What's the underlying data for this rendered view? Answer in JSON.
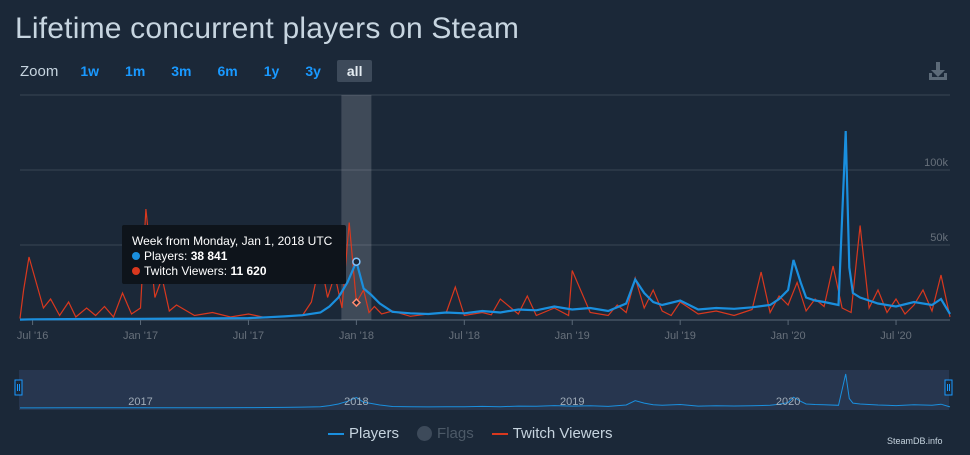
{
  "title": "Lifetime concurrent players on Steam",
  "zoom": {
    "label": "Zoom",
    "options": [
      "1w",
      "1m",
      "3m",
      "6m",
      "1y",
      "3y",
      "all"
    ],
    "active": "all"
  },
  "credit": "SteamDB.info",
  "icons": {
    "download": "download-icon"
  },
  "colors": {
    "players": "#1a8fde",
    "twitch": "#d9381e",
    "background": "#1b2838",
    "grid": "#3a4654",
    "navigator": "#2a3a55"
  },
  "tooltip": {
    "header": "Week from Monday, Jan 1, 2018 UTC",
    "players_label": "Players:",
    "players_value": "38 841",
    "twitch_label": "Twitch Viewers:",
    "twitch_value": "11 620"
  },
  "legend": {
    "players": "Players",
    "flags": "Flags",
    "twitch": "Twitch Viewers"
  },
  "chart_data": {
    "type": "line",
    "title": "Lifetime concurrent players on Steam",
    "x_unit": "months since Jan 2016",
    "xlim": [
      5.3,
      57.0
    ],
    "ylim": [
      0,
      150000
    ],
    "y_ticks": [
      50000,
      100000
    ],
    "y_tick_labels": [
      "50k",
      "100k"
    ],
    "x_ticks": [
      6,
      12,
      18,
      24,
      30,
      36,
      42,
      48,
      54
    ],
    "x_tick_labels": [
      "Jul '16",
      "Jan '17",
      "Jul '17",
      "Jan '18",
      "Jul '18",
      "Jan '19",
      "Jul '19",
      "Jan '20",
      "Jul '20"
    ],
    "navigator_labels": [
      "2017",
      "2018",
      "2019",
      "2020"
    ],
    "navigator_label_x": [
      12,
      24,
      36,
      48
    ],
    "highlight_x": 24,
    "grid": true,
    "legend_position": "bottom-center",
    "series": [
      {
        "name": "Players",
        "color": "#1a8fde",
        "x": [
          5.3,
          6,
          8,
          10,
          12,
          14,
          16,
          18,
          19,
          20,
          21,
          22,
          22.5,
          23,
          23.5,
          24,
          24.4,
          24.8,
          25.3,
          26,
          27,
          28,
          29,
          30,
          31,
          32,
          33,
          34,
          35,
          36,
          37,
          38,
          39,
          39.5,
          40,
          40.5,
          41,
          42,
          43,
          44,
          45,
          46,
          47,
          47.5,
          48,
          48.3,
          48.7,
          49,
          49.5,
          50,
          50.8,
          51.2,
          51.4,
          51.6,
          52,
          53,
          54,
          55,
          56,
          56.5,
          57
        ],
        "y": [
          300,
          500,
          600,
          700,
          800,
          900,
          1100,
          1300,
          1800,
          2400,
          3200,
          5000,
          9000,
          15000,
          25000,
          38841,
          21000,
          17000,
          11000,
          5500,
          4500,
          4000,
          5000,
          4500,
          6000,
          5000,
          7000,
          6500,
          9000,
          7000,
          8000,
          6000,
          11000,
          27000,
          18000,
          12000,
          10000,
          13000,
          7000,
          8000,
          7500,
          8500,
          10000,
          14000,
          20000,
          40000,
          25000,
          15000,
          13000,
          12000,
          10000,
          126000,
          35000,
          18000,
          15000,
          11000,
          9000,
          12000,
          10000,
          14000,
          4000
        ]
      },
      {
        "name": "Twitch Viewers",
        "color": "#d9381e",
        "x": [
          5.3,
          5.5,
          5.8,
          6.2,
          6.6,
          7,
          7.5,
          8,
          8.4,
          9,
          9.5,
          10,
          10.5,
          11,
          11.5,
          12,
          12.3,
          12.8,
          13.2,
          13.6,
          14,
          15,
          16,
          17,
          18,
          19,
          20,
          21,
          21.5,
          22,
          22.4,
          22.8,
          23.2,
          23.6,
          24,
          24.4,
          24.7,
          25,
          25.4,
          26,
          27,
          28,
          29,
          29.5,
          30,
          31,
          31.5,
          32,
          33,
          33.5,
          34,
          35,
          35.8,
          36,
          37,
          38,
          38.5,
          39,
          39.5,
          40,
          40.5,
          41,
          41.5,
          42,
          43,
          44,
          45,
          46,
          46.5,
          47,
          47.5,
          48,
          48.5,
          49,
          49.5,
          50,
          50.5,
          51,
          51.5,
          52,
          52.5,
          53,
          53.5,
          54,
          54.5,
          55,
          55.5,
          56,
          56.5,
          57
        ],
        "y": [
          1000,
          20000,
          42000,
          25000,
          8000,
          14000,
          3000,
          12000,
          2000,
          8000,
          3000,
          9000,
          2000,
          18000,
          4000,
          8000,
          74000,
          15000,
          28000,
          6000,
          10000,
          3000,
          5000,
          2000,
          4000,
          1500,
          2500,
          3000,
          12000,
          40000,
          15000,
          30000,
          8000,
          65000,
          11620,
          20000,
          5000,
          9000,
          4000,
          6000,
          2500,
          4000,
          5000,
          22000,
          3000,
          5000,
          3500,
          14000,
          4000,
          16000,
          3000,
          8000,
          3000,
          33000,
          5000,
          3000,
          10000,
          5000,
          28000,
          8000,
          20000,
          6000,
          3000,
          12000,
          4000,
          6000,
          3000,
          7000,
          32000,
          5000,
          16000,
          10000,
          25000,
          6000,
          14000,
          9000,
          36000,
          8000,
          5000,
          63000,
          8000,
          20000,
          5000,
          14000,
          4000,
          10000,
          20000,
          6000,
          30000,
          2000
        ]
      }
    ]
  }
}
